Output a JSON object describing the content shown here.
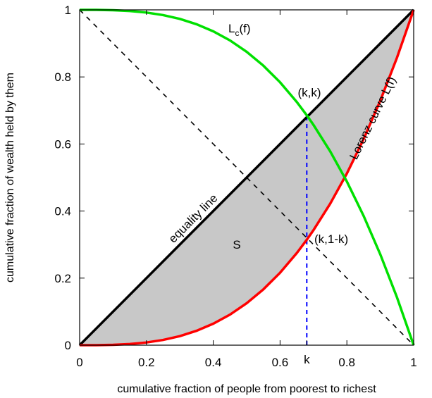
{
  "chart_data": {
    "type": "line",
    "xlabel": "cumulative fraction of people from poorest to richest",
    "ylabel": "cumulative fraction of wealth held by them",
    "xlim": [
      0,
      1
    ],
    "ylim": [
      0,
      1
    ],
    "x_ticks": [
      {
        "value": 0,
        "label": "0"
      },
      {
        "value": 0.2,
        "label": "0.2"
      },
      {
        "value": 0.4,
        "label": "0.4"
      },
      {
        "value": 0.6,
        "label": "0.6"
      },
      {
        "value": 0.8,
        "label": "0.8"
      },
      {
        "value": 1,
        "label": "1"
      }
    ],
    "y_ticks": [
      {
        "value": 0,
        "label": "0"
      },
      {
        "value": 0.2,
        "label": "0.2"
      },
      {
        "value": 0.4,
        "label": "0.4"
      },
      {
        "value": 0.6,
        "label": "0.6"
      },
      {
        "value": 0.8,
        "label": "0.8"
      },
      {
        "value": 1,
        "label": "1"
      }
    ],
    "k_tick": {
      "value": 0.68,
      "label": "k"
    },
    "grid": false,
    "legend": "none",
    "colors": {
      "lorenz": "#ff0000",
      "complementary": "#00e000",
      "equality": "#000000",
      "diagonal": "#000000",
      "k_marker": "#0000ff",
      "shaded_area": "#c8c8c8"
    },
    "series": [
      {
        "name": "Lorenz curve L(f)",
        "x": [
          0,
          0.05,
          0.1,
          0.15,
          0.2,
          0.25,
          0.3,
          0.35,
          0.4,
          0.45,
          0.5,
          0.55,
          0.6,
          0.65,
          0.68,
          0.7,
          0.75,
          0.8,
          0.85,
          0.9,
          0.95,
          1
        ],
        "y": [
          0,
          0.0001,
          0.001,
          0.0034,
          0.008,
          0.0156,
          0.027,
          0.0429,
          0.064,
          0.0911,
          0.125,
          0.1664,
          0.216,
          0.2746,
          0.3144,
          0.343,
          0.4219,
          0.512,
          0.6141,
          0.729,
          0.8574,
          1
        ]
      },
      {
        "name": "L_c(f)",
        "x": [
          0,
          0.05,
          0.1,
          0.15,
          0.2,
          0.25,
          0.3,
          0.35,
          0.4,
          0.45,
          0.5,
          0.55,
          0.6,
          0.65,
          0.68,
          0.7,
          0.75,
          0.8,
          0.85,
          0.9,
          0.95,
          1
        ],
        "y": [
          1,
          0.9999,
          0.999,
          0.9966,
          0.992,
          0.9844,
          0.973,
          0.9571,
          0.936,
          0.9089,
          0.875,
          0.8336,
          0.784,
          0.7254,
          0.6856,
          0.657,
          0.5781,
          0.488,
          0.3859,
          0.271,
          0.1426,
          0
        ]
      },
      {
        "name": "equality line",
        "x": [
          0,
          1
        ],
        "y": [
          0,
          1
        ]
      },
      {
        "x": [
          0,
          1
        ],
        "y": [
          1,
          0
        ]
      }
    ],
    "annotations": {
      "equality": "equality line",
      "lorenz": "Lorenz curve L(f)",
      "complementary_base": "L",
      "complementary_sub": "c",
      "complementary_arg": "(f)",
      "area": "S",
      "point_kk": "(k,k)",
      "point_k1k": "(k,1-k)"
    }
  }
}
